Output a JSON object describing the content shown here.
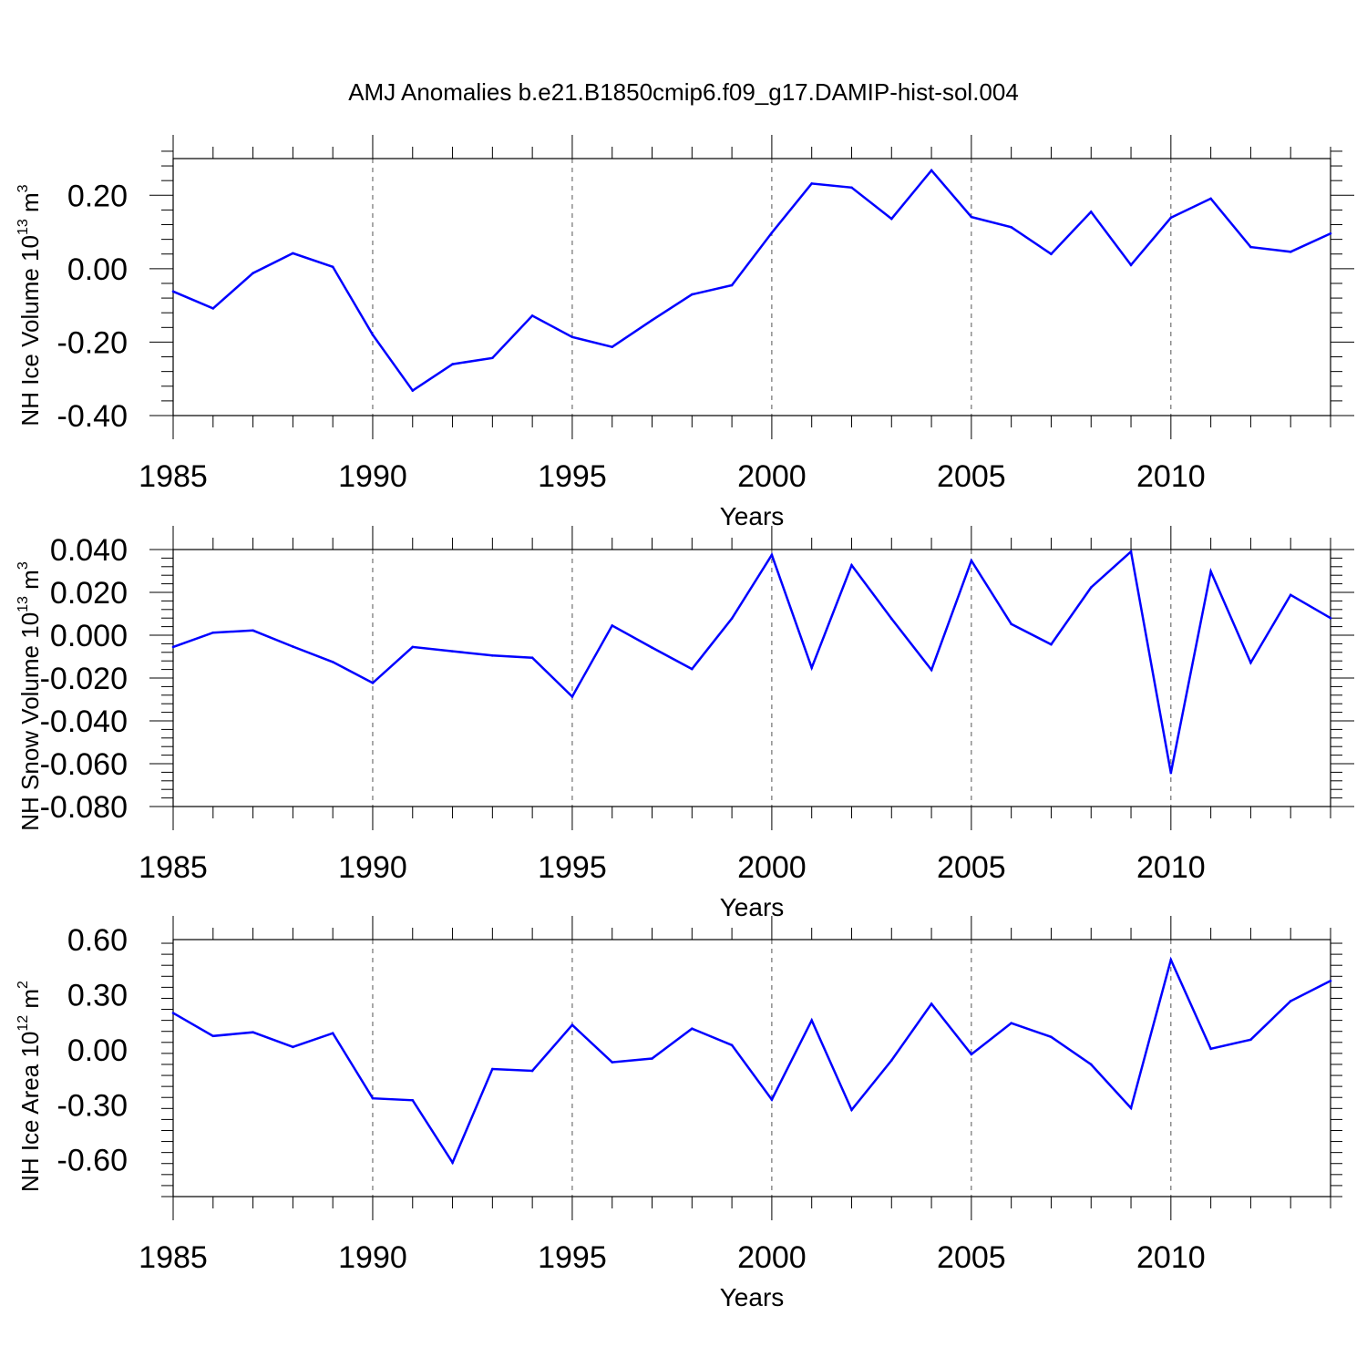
{
  "title": "AMJ Anomalies b.e21.B1850cmip6.f09_g17.DAMIP-hist-sol.004",
  "chart_data": [
    {
      "type": "line",
      "ylabel": "NH Ice Volume 10",
      "ylabel_exp": "13",
      "ylabel_unit": "m",
      "ylabel_unit_exp": "3",
      "xlabel": "Years",
      "xlim": [
        1985,
        2014
      ],
      "ylim": [
        -0.4,
        0.3
      ],
      "yticks": [
        -0.4,
        -0.2,
        0.0,
        0.2
      ],
      "ytick_labels": [
        "-0.40",
        "-0.20",
        "0.00",
        "0.20"
      ],
      "xticks": [
        1985,
        1990,
        1995,
        2000,
        2005,
        2010
      ],
      "xtick_labels": [
        "1985",
        "1990",
        "1995",
        "2000",
        "2005",
        "2010"
      ],
      "x": [
        1985,
        1986,
        1987,
        1988,
        1989,
        1990,
        1991,
        1992,
        1993,
        1994,
        1995,
        1996,
        1997,
        1998,
        1999,
        2000,
        2001,
        2002,
        2003,
        2004,
        2005,
        2006,
        2007,
        2008,
        2009,
        2010,
        2011,
        2012,
        2013,
        2014
      ],
      "values": [
        -0.062,
        -0.108,
        -0.012,
        0.042,
        0.005,
        -0.18,
        -0.332,
        -0.26,
        -0.243,
        -0.128,
        -0.186,
        -0.213,
        -0.14,
        -0.07,
        -0.045,
        0.098,
        0.232,
        0.221,
        0.136,
        0.268,
        0.141,
        0.113,
        0.04,
        0.155,
        0.01,
        0.139,
        0.191,
        0.059,
        0.046,
        0.096
      ],
      "grid_x": "dashed vertical at major x ticks",
      "line_color": "#0000ff"
    },
    {
      "type": "line",
      "ylabel": "NH Snow Volume 10",
      "ylabel_exp": "13",
      "ylabel_unit": "m",
      "ylabel_unit_exp": "3",
      "xlabel": "Years",
      "xlim": [
        1985,
        2014
      ],
      "ylim": [
        -0.08,
        0.04
      ],
      "yticks": [
        -0.08,
        -0.06,
        -0.04,
        -0.02,
        0.0,
        0.02,
        0.04
      ],
      "ytick_labels": [
        "-0.080",
        "-0.060",
        "-0.040",
        "-0.020",
        "0.000",
        "0.020",
        "0.040"
      ],
      "xticks": [
        1985,
        1990,
        1995,
        2000,
        2005,
        2010
      ],
      "xtick_labels": [
        "1985",
        "1990",
        "1995",
        "2000",
        "2005",
        "2010"
      ],
      "x": [
        1985,
        1986,
        1987,
        1988,
        1989,
        1990,
        1991,
        1992,
        1993,
        1994,
        1995,
        1996,
        1997,
        1998,
        1999,
        2000,
        2001,
        2002,
        2003,
        2004,
        2005,
        2006,
        2007,
        2008,
        2009,
        2010,
        2011,
        2012,
        2013,
        2014
      ],
      "values": [
        -0.0055,
        0.0012,
        0.0022,
        -0.0053,
        -0.0125,
        -0.0223,
        -0.0055,
        -0.0075,
        -0.0095,
        -0.0105,
        -0.0287,
        0.0045,
        -0.0058,
        -0.0158,
        0.0078,
        0.0375,
        -0.0152,
        0.0327,
        0.0077,
        -0.0162,
        0.0348,
        0.0052,
        -0.0043,
        0.0223,
        0.039,
        -0.0643,
        0.0298,
        -0.0128,
        0.0188,
        0.008
      ],
      "grid_x": "dashed vertical at major x ticks",
      "line_color": "#0000ff"
    },
    {
      "type": "line",
      "ylabel": "NH Ice Area 10",
      "ylabel_exp": "12",
      "ylabel_unit": "m",
      "ylabel_unit_exp": "2",
      "xlabel": "Years",
      "xlim": [
        1985,
        2014
      ],
      "ylim": [
        -0.8,
        0.6
      ],
      "yticks": [
        -0.6,
        -0.3,
        0.0,
        0.3,
        0.6
      ],
      "ytick_labels": [
        "-0.60",
        "-0.30",
        "0.00",
        "0.30",
        "0.60"
      ],
      "xticks": [
        1985,
        1990,
        1995,
        2000,
        2005,
        2010
      ],
      "xtick_labels": [
        "1985",
        "1990",
        "1995",
        "2000",
        "2005",
        "2010"
      ],
      "x": [
        1985,
        1986,
        1987,
        1988,
        1989,
        1990,
        1991,
        1992,
        1993,
        1994,
        1995,
        1996,
        1997,
        1998,
        1999,
        2000,
        2001,
        2002,
        2003,
        2004,
        2005,
        2006,
        2007,
        2008,
        2009,
        2010,
        2011,
        2012,
        2013,
        2014
      ],
      "values": [
        0.2,
        0.075,
        0.095,
        0.015,
        0.09,
        -0.265,
        -0.275,
        -0.615,
        -0.105,
        -0.115,
        0.135,
        -0.068,
        -0.048,
        0.115,
        0.025,
        -0.272,
        0.16,
        -0.328,
        -0.058,
        0.25,
        -0.025,
        0.145,
        0.07,
        -0.08,
        -0.318,
        0.49,
        0.005,
        0.055,
        0.265,
        0.375
      ],
      "grid_x": "dashed vertical at major x ticks",
      "line_color": "#0000ff"
    }
  ]
}
